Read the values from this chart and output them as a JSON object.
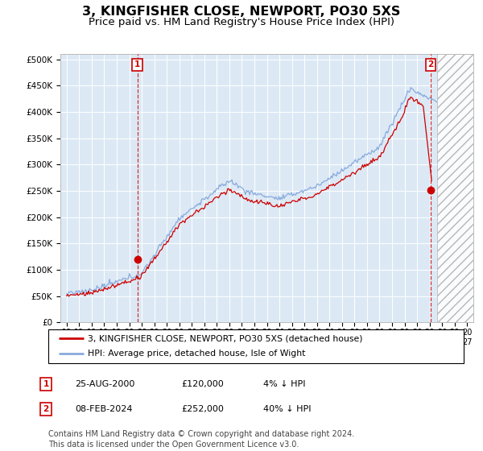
{
  "title": "3, KINGFISHER CLOSE, NEWPORT, PO30 5XS",
  "subtitle": "Price paid vs. HM Land Registry's House Price Index (HPI)",
  "title_fontsize": 11.5,
  "subtitle_fontsize": 9.5,
  "ylabel_ticks": [
    "£0",
    "£50K",
    "£100K",
    "£150K",
    "£200K",
    "£250K",
    "£300K",
    "£350K",
    "£400K",
    "£450K",
    "£500K"
  ],
  "ytick_values": [
    0,
    50000,
    100000,
    150000,
    200000,
    250000,
    300000,
    350000,
    400000,
    450000,
    500000
  ],
  "ylim": [
    0,
    510000
  ],
  "xlim_start": 1994.5,
  "xlim_end": 2027.5,
  "xticks": [
    1995,
    1996,
    1997,
    1998,
    1999,
    2000,
    2001,
    2002,
    2003,
    2004,
    2005,
    2006,
    2007,
    2008,
    2009,
    2010,
    2011,
    2012,
    2013,
    2014,
    2015,
    2016,
    2017,
    2018,
    2019,
    2020,
    2021,
    2022,
    2023,
    2024,
    2025,
    2026,
    2027
  ],
  "sale1_x": 2000.646,
  "sale1_y": 120000,
  "sale2_x": 2024.1,
  "sale2_y": 252000,
  "future_start": 2024.58,
  "chart_bg": "#dce9f5",
  "line_red": "#cc0000",
  "line_blue": "#88aadd",
  "marker_red": "#cc0000",
  "legend_label1": "3, KINGFISHER CLOSE, NEWPORT, PO30 5XS (detached house)",
  "legend_label2": "HPI: Average price, detached house, Isle of Wight",
  "table_row1": [
    "1",
    "25-AUG-2000",
    "£120,000",
    "4% ↓ HPI"
  ],
  "table_row2": [
    "2",
    "08-FEB-2024",
    "£252,000",
    "40% ↓ HPI"
  ],
  "footnote": "Contains HM Land Registry data © Crown copyright and database right 2024.\nThis data is licensed under the Open Government Licence v3.0.",
  "footnote_fontsize": 7.0
}
